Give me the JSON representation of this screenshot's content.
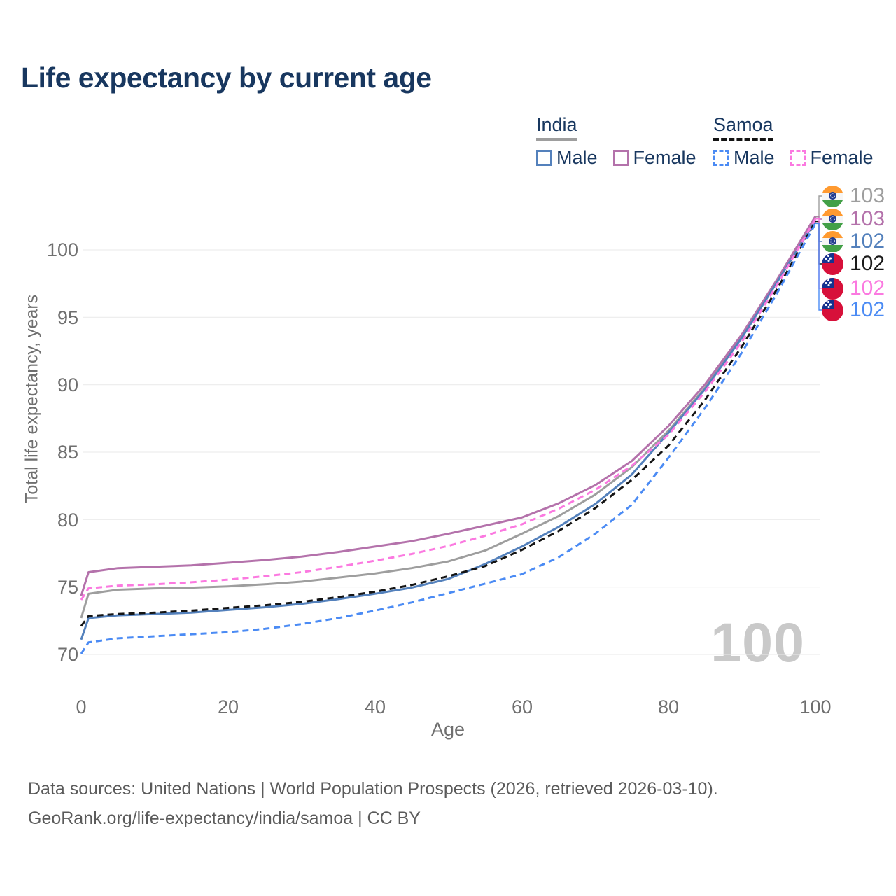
{
  "title": "Life expectancy by current age",
  "legend": {
    "groups": [
      {
        "label": "India",
        "underline": {
          "color": "#9e9e9e",
          "style": "solid"
        },
        "items": [
          {
            "label": "Male",
            "color": "#5481bc",
            "dashed": false
          },
          {
            "label": "Female",
            "color": "#b472ab",
            "dashed": false
          }
        ]
      },
      {
        "label": "Samoa",
        "underline": {
          "color": "#141414",
          "style": "dashed"
        },
        "items": [
          {
            "label": "Male",
            "color": "#4b8bf4",
            "dashed": true
          },
          {
            "label": "Female",
            "color": "#fb79e0",
            "dashed": true
          }
        ]
      }
    ]
  },
  "chart_data": {
    "type": "line",
    "title": "Life expectancy by current age",
    "xlabel": "Age",
    "ylabel": "Total life expectancy, years",
    "xlim": [
      0,
      100
    ],
    "ylim": [
      70,
      103
    ],
    "grid": "horizontal",
    "legend_position": "top-right",
    "x_ticks": [
      0,
      20,
      40,
      60,
      80,
      100
    ],
    "y_ticks": [
      100,
      95,
      90,
      85,
      80,
      75,
      70
    ],
    "x_tick_labels": [
      "0",
      "20",
      "40",
      "60",
      "80",
      "100"
    ],
    "y_tick_labels": [
      "100",
      "95",
      "90",
      "85",
      "80",
      "75",
      "70"
    ],
    "ages": [
      0,
      1,
      5,
      10,
      15,
      20,
      25,
      30,
      35,
      40,
      45,
      50,
      55,
      60,
      65,
      70,
      75,
      80,
      85,
      90,
      95,
      100
    ],
    "series": [
      {
        "id": "india-both",
        "name": "India — Both sexes",
        "country": "India",
        "sex": "Both",
        "color": "#9e9e9e",
        "dashed": false,
        "end_label": "103",
        "values": [
          72.7,
          74.5,
          74.8,
          74.9,
          74.95,
          75.05,
          75.2,
          75.4,
          75.7,
          76.0,
          76.4,
          76.9,
          77.7,
          78.95,
          80.25,
          81.85,
          83.9,
          86.6,
          89.8,
          93.6,
          97.9,
          102.45
        ]
      },
      {
        "id": "india-female",
        "name": "India — Female",
        "country": "India",
        "sex": "Female",
        "color": "#b472ab",
        "dashed": false,
        "end_label": "103",
        "values": [
          74.35,
          76.1,
          76.4,
          76.5,
          76.6,
          76.8,
          77.0,
          77.25,
          77.6,
          78.0,
          78.4,
          78.95,
          79.55,
          80.15,
          81.2,
          82.55,
          84.35,
          86.95,
          90.05,
          93.75,
          98.0,
          102.5
        ]
      },
      {
        "id": "india-male",
        "name": "India — Male",
        "country": "India",
        "sex": "Male",
        "color": "#5481bc",
        "dashed": false,
        "end_label": "102",
        "values": [
          71.1,
          72.7,
          72.9,
          73.0,
          73.1,
          73.3,
          73.5,
          73.75,
          74.1,
          74.5,
          74.95,
          75.6,
          76.7,
          78.0,
          79.45,
          81.15,
          83.35,
          86.45,
          89.7,
          93.5,
          97.8,
          102.15
        ]
      },
      {
        "id": "samoa-both",
        "name": "Samoa — Both sexes",
        "country": "Samoa",
        "sex": "Both",
        "color": "#141414",
        "dashed": true,
        "end_label": "102",
        "values": [
          72.1,
          72.85,
          73.0,
          73.1,
          73.25,
          73.45,
          73.65,
          73.9,
          74.25,
          74.65,
          75.15,
          75.8,
          76.55,
          77.75,
          79.15,
          80.85,
          82.95,
          85.5,
          88.9,
          92.85,
          97.3,
          102.1
        ]
      },
      {
        "id": "samoa-female",
        "name": "Samoa — Female",
        "country": "Samoa",
        "sex": "Female",
        "color": "#fb79e0",
        "dashed": true,
        "end_label": "102",
        "values": [
          74.05,
          74.9,
          75.1,
          75.2,
          75.35,
          75.55,
          75.8,
          76.1,
          76.5,
          76.95,
          77.45,
          78.05,
          78.8,
          79.65,
          80.8,
          82.2,
          84.0,
          86.3,
          89.5,
          93.2,
          97.6,
          102.3
        ]
      },
      {
        "id": "samoa-male",
        "name": "Samoa — Male",
        "country": "Samoa",
        "sex": "Male",
        "color": "#4b8bf4",
        "dashed": true,
        "end_label": "102",
        "values": [
          70.05,
          70.9,
          71.2,
          71.35,
          71.5,
          71.65,
          71.9,
          72.25,
          72.7,
          73.25,
          73.85,
          74.55,
          75.25,
          75.95,
          77.2,
          78.95,
          81.1,
          84.6,
          88.3,
          92.4,
          97.0,
          101.95
        ]
      }
    ]
  },
  "right_labels": [
    {
      "flag": "india",
      "value": "103",
      "color": "#9e9e9e"
    },
    {
      "flag": "india",
      "value": "103",
      "color": "#b472ab"
    },
    {
      "flag": "india",
      "value": "102",
      "color": "#5481bc"
    },
    {
      "flag": "samoa",
      "value": "102",
      "color": "#1a1a1a"
    },
    {
      "flag": "samoa",
      "value": "102",
      "color": "#fb79e0"
    },
    {
      "flag": "samoa",
      "value": "102",
      "color": "#4b8bf4"
    }
  ],
  "watermark": "100",
  "colors": {
    "title": "#18375f",
    "grid": "#e9e9e9",
    "axis_text": "#6f6f6f",
    "footer_text": "#5b5b5b",
    "watermark": "#c9c9c9"
  },
  "footer": {
    "line1": "Data sources: United Nations | World Population Prospects (2026, retrieved 2026-03-10).",
    "line2": "GeoRank.org/life-expectancy/india/samoa | CC BY"
  }
}
